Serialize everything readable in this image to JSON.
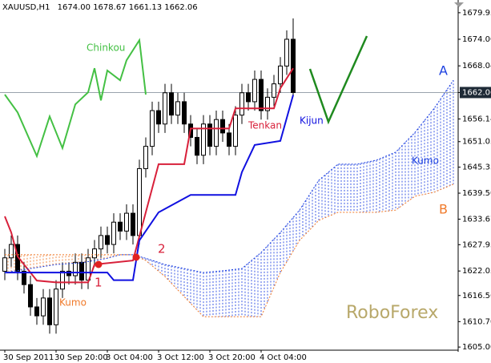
{
  "chart_data": {
    "type": "candlestick",
    "title": "XAUUSD,H1",
    "header_values": [
      "1674.00",
      "1678.67",
      "1661.13",
      "1662.06"
    ],
    "xlim": [
      -0.75,
      70.75
    ],
    "xticks": [
      {
        "value": 0,
        "label": "30 Sep 2011"
      },
      {
        "value": 8,
        "label": "30 Sep 20:00"
      },
      {
        "value": 16,
        "label": "3 Oct 04:00"
      },
      {
        "value": 24,
        "label": "3 Oct 12:00"
      },
      {
        "value": 32,
        "label": "3 Oct 20:00"
      },
      {
        "value": 40,
        "label": "4 Oct 04:00"
      }
    ],
    "ylim": [
      1604.3,
      1682.8
    ],
    "yticks": [
      1679.95,
      {
        "value": 1674,
        "label": "1674.00"
      },
      1668.04,
      1662.06,
      1656.14,
      1651.05,
      1645.33,
      {
        "value": 1639.5,
        "label": "1639.50"
      },
      1633.67,
      1627.95,
      1622.05,
      1616.56,
      {
        "value": 1610.7,
        "label": "1610.70"
      },
      {
        "value": 1605,
        "label": "1605.00"
      }
    ],
    "open": [
      1622,
      1625,
      1628,
      1622,
      1619,
      1614,
      1612,
      1616,
      1610,
      1618,
      1622,
      1621,
      1624,
      1620,
      1625,
      1627,
      1630,
      1628,
      1633,
      1631,
      1635,
      1630,
      1645,
      1650,
      1658,
      1655,
      1662,
      1657,
      1660,
      1655,
      1652,
      1648,
      1655,
      1650,
      1656,
      1653,
      1650,
      1657,
      1662,
      1660,
      1665,
      1658,
      1661,
      1664,
      1668,
      1674
    ],
    "high": [
      1627,
      1630,
      1630,
      1624,
      1621,
      1616,
      1618,
      1618,
      1620,
      1624,
      1624,
      1626,
      1626,
      1627,
      1629,
      1632,
      1632,
      1635,
      1635,
      1637,
      1637,
      1647,
      1652,
      1660,
      1660,
      1664,
      1664,
      1662,
      1662,
      1657,
      1654,
      1657,
      1657,
      1658,
      1658,
      1655,
      1659,
      1664,
      1664,
      1667,
      1667,
      1663,
      1666,
      1670,
      1676,
      1678.67
    ],
    "low": [
      1620,
      1623,
      1620,
      1617,
      1612,
      1610,
      1610,
      1608,
      1608,
      1616,
      1619,
      1619,
      1618,
      1618,
      1623,
      1625,
      1626,
      1626,
      1629,
      1629,
      1628,
      1628,
      1643,
      1648,
      1653,
      1653,
      1655,
      1655,
      1653,
      1650,
      1646,
      1646,
      1648,
      1648,
      1651,
      1648,
      1648,
      1655,
      1658,
      1658,
      1656,
      1656,
      1659,
      1662,
      1666,
      1661.13
    ],
    "close": [
      1625,
      1628,
      1622,
      1619,
      1614,
      1612,
      1616,
      1610,
      1618,
      1622,
      1621,
      1624,
      1620,
      1625,
      1627,
      1630,
      1628,
      1633,
      1631,
      1635,
      1630,
      1645,
      1650,
      1658,
      1655,
      1662,
      1657,
      1660,
      1655,
      1652,
      1648,
      1655,
      1650,
      1656,
      1653,
      1650,
      1657,
      1662,
      1660,
      1665,
      1658,
      1661,
      1664,
      1668,
      1674,
      1662.06
    ],
    "series": [
      {
        "name": "Tenkan",
        "color": "#d8203a",
        "x": [
          0,
          1,
          2,
          4,
          5,
          8,
          13,
          14,
          20,
          22,
          24,
          28,
          29,
          35,
          36,
          42,
          43,
          45
        ],
        "values": [
          1634.3,
          1630.7,
          1625.3,
          1621.7,
          1619.9,
          1619.5,
          1619.5,
          1623.5,
          1624.4,
          1635.2,
          1646,
          1646,
          1654,
          1654,
          1658.5,
          1658.5,
          1663,
          1667.5
        ]
      },
      {
        "name": "Kijun",
        "color": "#1010e0",
        "x": [
          0,
          16,
          17,
          20,
          21,
          24,
          29,
          36,
          37,
          39,
          43,
          45
        ],
        "values": [
          1621.7,
          1621.7,
          1620,
          1620,
          1628.9,
          1635.2,
          1639.1,
          1639.1,
          1644.2,
          1650.3,
          1651.2,
          1661.5
        ]
      },
      {
        "name": "Chinkou",
        "color": "#44c044",
        "x": [
          0,
          2,
          5,
          7,
          9,
          11,
          13,
          14,
          15,
          16,
          18,
          19,
          21,
          22
        ],
        "values": [
          1661.6,
          1657.6,
          1647.8,
          1656.7,
          1649.6,
          1659.4,
          1662.1,
          1667.5,
          1660.3,
          1667,
          1664.8,
          1669.3,
          1673.8,
          1661.6
        ]
      },
      {
        "name": "A",
        "color": "#1a3ee0",
        "x": [
          0,
          4,
          8,
          12,
          16,
          18,
          20,
          22,
          25,
          28,
          31,
          34,
          37,
          40,
          43,
          46,
          49,
          52,
          55,
          58,
          61,
          64,
          67,
          70
        ],
        "values": [
          1621.7,
          1622.6,
          1623.5,
          1623.9,
          1624.9,
          1625.7,
          1625.7,
          1624.9,
          1623.5,
          1622.6,
          1621.7,
          1622.1,
          1622.6,
          1626.2,
          1630.7,
          1635.7,
          1642.4,
          1646,
          1646,
          1646.9,
          1648.7,
          1653.1,
          1658.5,
          1664.8
        ]
      },
      {
        "name": "B",
        "color": "#f07a2a",
        "x": [
          0,
          4,
          8,
          12,
          16,
          18,
          20,
          22,
          25,
          28,
          31,
          34,
          37,
          40,
          43,
          46,
          49,
          52,
          55,
          58,
          61,
          64,
          67,
          70
        ],
        "values": [
          1625.7,
          1625.7,
          1625.7,
          1625.7,
          1625.7,
          1625.7,
          1625.7,
          1624.4,
          1620.8,
          1616.3,
          1611.8,
          1611.8,
          1611.8,
          1611.8,
          1621.7,
          1628.9,
          1633.4,
          1635.2,
          1635.2,
          1635.2,
          1635.7,
          1638.8,
          1639.7,
          1641.5
        ]
      }
    ],
    "annotations": [
      "Kumo",
      "Kumo",
      "1",
      "2",
      "RoboForex"
    ]
  }
}
